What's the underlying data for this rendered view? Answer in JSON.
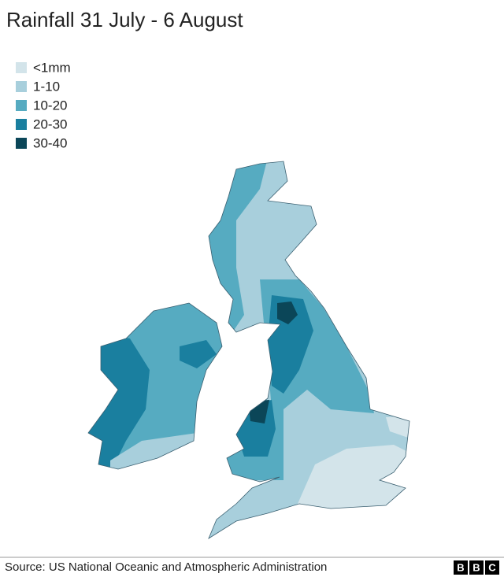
{
  "header": {
    "title": "Rainfall 31 July - 6 August"
  },
  "legend": {
    "items": [
      {
        "label": "<1mm",
        "color": "#d3e4ea"
      },
      {
        "label": "1-10",
        "color": "#a8cfdc"
      },
      {
        "label": "10-20",
        "color": "#56abc1"
      },
      {
        "label": "20-30",
        "color": "#1a7f9f"
      },
      {
        "label": "30-40",
        "color": "#0b4658"
      }
    ]
  },
  "footer": {
    "source": "Source: US National Oceanic and Atmospheric Administration",
    "logo": [
      "B",
      "B",
      "C"
    ]
  }
}
